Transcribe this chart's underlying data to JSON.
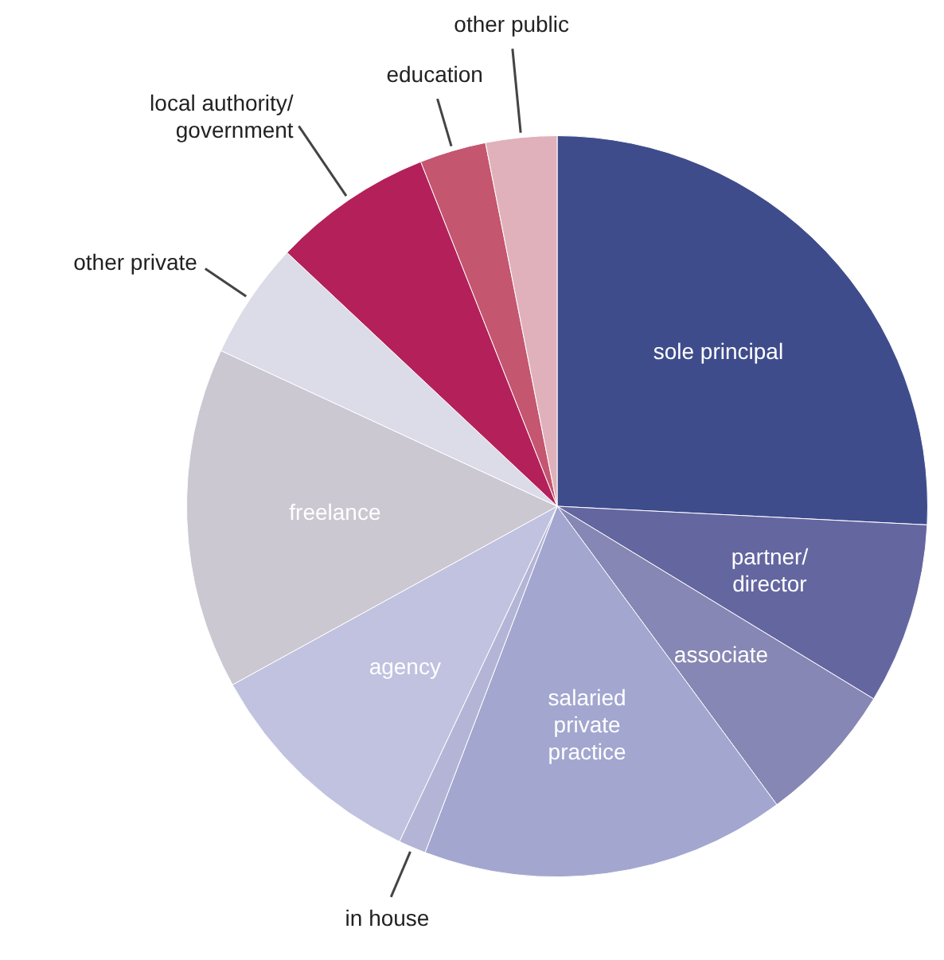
{
  "chart_data": {
    "type": "pie",
    "categories": [
      "sole principal",
      "partner/director",
      "associate",
      "salaried private practice",
      "in house",
      "agency",
      "freelance",
      "other private",
      "local authority/government",
      "education",
      "other public"
    ],
    "values": [
      25.8,
      7.9,
      6.2,
      15.9,
      1.2,
      10.0,
      14.9,
      5.1,
      7.0,
      2.9,
      3.1
    ],
    "colors": [
      "#3f4c8c",
      "#6466a0",
      "#8787b5",
      "#a3a6cf",
      "#b4b5d6",
      "#c0c2e0",
      "#cbc8d2",
      "#dcdbe8",
      "#b4215a",
      "#c4566f",
      "#e0b1ba"
    ],
    "legend": false
  }
}
